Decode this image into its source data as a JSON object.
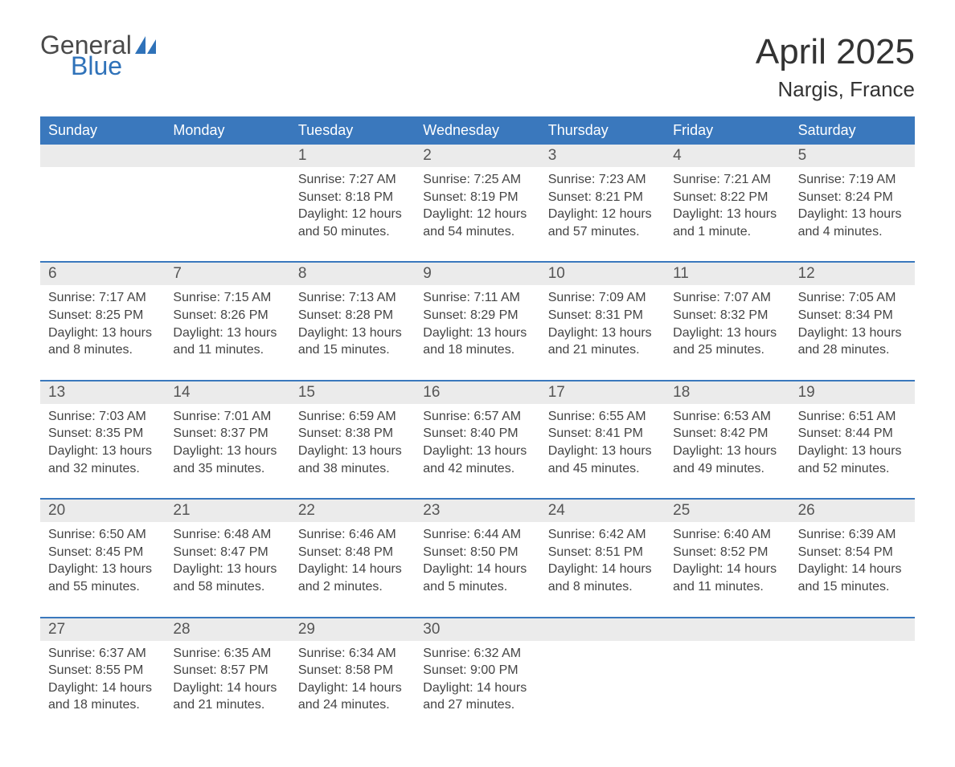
{
  "logo": {
    "general": "General",
    "blue": "Blue"
  },
  "header": {
    "title": "April 2025",
    "location": "Nargis, France"
  },
  "colors": {
    "header_bg": "#3a78bd",
    "header_text": "#ffffff",
    "daynum_bg": "#ebebeb",
    "week_divider": "#3a78bd",
    "body_text": "#444444",
    "page_bg": "#ffffff",
    "logo_general": "#4a4a4a",
    "logo_blue": "#2f72b9"
  },
  "layout": {
    "columns": 7,
    "rows": 5,
    "title_fontsize": 44,
    "location_fontsize": 26,
    "header_fontsize": 18,
    "daynum_fontsize": 19,
    "body_fontsize": 16
  },
  "day_labels": [
    "Sunday",
    "Monday",
    "Tuesday",
    "Wednesday",
    "Thursday",
    "Friday",
    "Saturday"
  ],
  "weeks": [
    [
      {
        "day": "",
        "sunrise": "",
        "sunset": "",
        "daylight1": "",
        "daylight2": ""
      },
      {
        "day": "",
        "sunrise": "",
        "sunset": "",
        "daylight1": "",
        "daylight2": ""
      },
      {
        "day": "1",
        "sunrise": "Sunrise: 7:27 AM",
        "sunset": "Sunset: 8:18 PM",
        "daylight1": "Daylight: 12 hours",
        "daylight2": "and 50 minutes."
      },
      {
        "day": "2",
        "sunrise": "Sunrise: 7:25 AM",
        "sunset": "Sunset: 8:19 PM",
        "daylight1": "Daylight: 12 hours",
        "daylight2": "and 54 minutes."
      },
      {
        "day": "3",
        "sunrise": "Sunrise: 7:23 AM",
        "sunset": "Sunset: 8:21 PM",
        "daylight1": "Daylight: 12 hours",
        "daylight2": "and 57 minutes."
      },
      {
        "day": "4",
        "sunrise": "Sunrise: 7:21 AM",
        "sunset": "Sunset: 8:22 PM",
        "daylight1": "Daylight: 13 hours",
        "daylight2": "and 1 minute."
      },
      {
        "day": "5",
        "sunrise": "Sunrise: 7:19 AM",
        "sunset": "Sunset: 8:24 PM",
        "daylight1": "Daylight: 13 hours",
        "daylight2": "and 4 minutes."
      }
    ],
    [
      {
        "day": "6",
        "sunrise": "Sunrise: 7:17 AM",
        "sunset": "Sunset: 8:25 PM",
        "daylight1": "Daylight: 13 hours",
        "daylight2": "and 8 minutes."
      },
      {
        "day": "7",
        "sunrise": "Sunrise: 7:15 AM",
        "sunset": "Sunset: 8:26 PM",
        "daylight1": "Daylight: 13 hours",
        "daylight2": "and 11 minutes."
      },
      {
        "day": "8",
        "sunrise": "Sunrise: 7:13 AM",
        "sunset": "Sunset: 8:28 PM",
        "daylight1": "Daylight: 13 hours",
        "daylight2": "and 15 minutes."
      },
      {
        "day": "9",
        "sunrise": "Sunrise: 7:11 AM",
        "sunset": "Sunset: 8:29 PM",
        "daylight1": "Daylight: 13 hours",
        "daylight2": "and 18 minutes."
      },
      {
        "day": "10",
        "sunrise": "Sunrise: 7:09 AM",
        "sunset": "Sunset: 8:31 PM",
        "daylight1": "Daylight: 13 hours",
        "daylight2": "and 21 minutes."
      },
      {
        "day": "11",
        "sunrise": "Sunrise: 7:07 AM",
        "sunset": "Sunset: 8:32 PM",
        "daylight1": "Daylight: 13 hours",
        "daylight2": "and 25 minutes."
      },
      {
        "day": "12",
        "sunrise": "Sunrise: 7:05 AM",
        "sunset": "Sunset: 8:34 PM",
        "daylight1": "Daylight: 13 hours",
        "daylight2": "and 28 minutes."
      }
    ],
    [
      {
        "day": "13",
        "sunrise": "Sunrise: 7:03 AM",
        "sunset": "Sunset: 8:35 PM",
        "daylight1": "Daylight: 13 hours",
        "daylight2": "and 32 minutes."
      },
      {
        "day": "14",
        "sunrise": "Sunrise: 7:01 AM",
        "sunset": "Sunset: 8:37 PM",
        "daylight1": "Daylight: 13 hours",
        "daylight2": "and 35 minutes."
      },
      {
        "day": "15",
        "sunrise": "Sunrise: 6:59 AM",
        "sunset": "Sunset: 8:38 PM",
        "daylight1": "Daylight: 13 hours",
        "daylight2": "and 38 minutes."
      },
      {
        "day": "16",
        "sunrise": "Sunrise: 6:57 AM",
        "sunset": "Sunset: 8:40 PM",
        "daylight1": "Daylight: 13 hours",
        "daylight2": "and 42 minutes."
      },
      {
        "day": "17",
        "sunrise": "Sunrise: 6:55 AM",
        "sunset": "Sunset: 8:41 PM",
        "daylight1": "Daylight: 13 hours",
        "daylight2": "and 45 minutes."
      },
      {
        "day": "18",
        "sunrise": "Sunrise: 6:53 AM",
        "sunset": "Sunset: 8:42 PM",
        "daylight1": "Daylight: 13 hours",
        "daylight2": "and 49 minutes."
      },
      {
        "day": "19",
        "sunrise": "Sunrise: 6:51 AM",
        "sunset": "Sunset: 8:44 PM",
        "daylight1": "Daylight: 13 hours",
        "daylight2": "and 52 minutes."
      }
    ],
    [
      {
        "day": "20",
        "sunrise": "Sunrise: 6:50 AM",
        "sunset": "Sunset: 8:45 PM",
        "daylight1": "Daylight: 13 hours",
        "daylight2": "and 55 minutes."
      },
      {
        "day": "21",
        "sunrise": "Sunrise: 6:48 AM",
        "sunset": "Sunset: 8:47 PM",
        "daylight1": "Daylight: 13 hours",
        "daylight2": "and 58 minutes."
      },
      {
        "day": "22",
        "sunrise": "Sunrise: 6:46 AM",
        "sunset": "Sunset: 8:48 PM",
        "daylight1": "Daylight: 14 hours",
        "daylight2": "and 2 minutes."
      },
      {
        "day": "23",
        "sunrise": "Sunrise: 6:44 AM",
        "sunset": "Sunset: 8:50 PM",
        "daylight1": "Daylight: 14 hours",
        "daylight2": "and 5 minutes."
      },
      {
        "day": "24",
        "sunrise": "Sunrise: 6:42 AM",
        "sunset": "Sunset: 8:51 PM",
        "daylight1": "Daylight: 14 hours",
        "daylight2": "and 8 minutes."
      },
      {
        "day": "25",
        "sunrise": "Sunrise: 6:40 AM",
        "sunset": "Sunset: 8:52 PM",
        "daylight1": "Daylight: 14 hours",
        "daylight2": "and 11 minutes."
      },
      {
        "day": "26",
        "sunrise": "Sunrise: 6:39 AM",
        "sunset": "Sunset: 8:54 PM",
        "daylight1": "Daylight: 14 hours",
        "daylight2": "and 15 minutes."
      }
    ],
    [
      {
        "day": "27",
        "sunrise": "Sunrise: 6:37 AM",
        "sunset": "Sunset: 8:55 PM",
        "daylight1": "Daylight: 14 hours",
        "daylight2": "and 18 minutes."
      },
      {
        "day": "28",
        "sunrise": "Sunrise: 6:35 AM",
        "sunset": "Sunset: 8:57 PM",
        "daylight1": "Daylight: 14 hours",
        "daylight2": "and 21 minutes."
      },
      {
        "day": "29",
        "sunrise": "Sunrise: 6:34 AM",
        "sunset": "Sunset: 8:58 PM",
        "daylight1": "Daylight: 14 hours",
        "daylight2": "and 24 minutes."
      },
      {
        "day": "30",
        "sunrise": "Sunrise: 6:32 AM",
        "sunset": "Sunset: 9:00 PM",
        "daylight1": "Daylight: 14 hours",
        "daylight2": "and 27 minutes."
      },
      {
        "day": "",
        "sunrise": "",
        "sunset": "",
        "daylight1": "",
        "daylight2": ""
      },
      {
        "day": "",
        "sunrise": "",
        "sunset": "",
        "daylight1": "",
        "daylight2": ""
      },
      {
        "day": "",
        "sunrise": "",
        "sunset": "",
        "daylight1": "",
        "daylight2": ""
      }
    ]
  ]
}
